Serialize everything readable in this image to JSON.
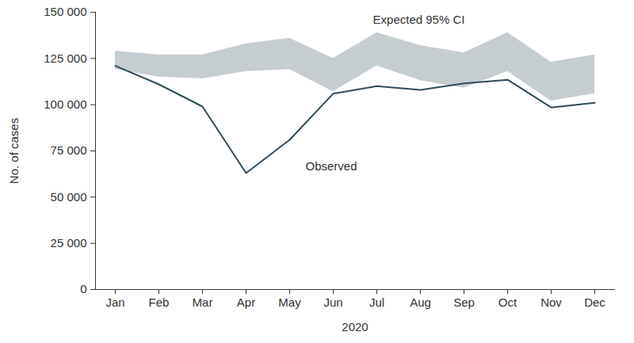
{
  "chart_data": {
    "type": "line",
    "x_label": "2020",
    "y_label": "No. of cases",
    "categories": [
      "Jan",
      "Feb",
      "Mar",
      "Apr",
      "May",
      "Jun",
      "Jul",
      "Aug",
      "Sep",
      "Oct",
      "Nov",
      "Dec"
    ],
    "series": [
      {
        "name": "Observed",
        "type": "line",
        "color": "#2f4b5b",
        "values": [
          121000,
          111000,
          99000,
          63000,
          81000,
          106000,
          110000,
          108000,
          111500,
          113500,
          98500,
          101000
        ]
      },
      {
        "name": "Expected 95% CI",
        "type": "area",
        "color": "#c6cdd1",
        "lower": [
          119000,
          115000,
          114000,
          118000,
          119000,
          107000,
          121000,
          113000,
          109000,
          118000,
          102000,
          106000
        ],
        "upper": [
          129000,
          127000,
          127000,
          133000,
          136000,
          125000,
          139000,
          132000,
          128000,
          139000,
          123000,
          127000
        ]
      }
    ],
    "ylim": [
      0,
      150000
    ],
    "yticks": [
      0,
      {
        "value": 25000,
        "label": "25 000"
      },
      {
        "value": 50000,
        "label": "50 000"
      },
      {
        "value": 75000,
        "label": "75 000"
      },
      {
        "value": 100000,
        "label": "100 000"
      },
      {
        "value": 125000,
        "label": "125 000"
      },
      {
        "value": 150000,
        "label": "150 000"
      }
    ],
    "grid": false
  }
}
